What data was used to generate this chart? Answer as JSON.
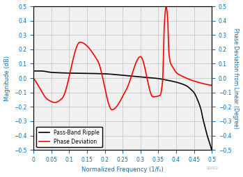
{
  "title": "",
  "xlabel": "Normalized Frequency (1/fₛ)",
  "ylabel_left": "Magnitude (dB)",
  "ylabel_right": "Phase Deviation from Linear (Degree)",
  "xlim": [
    0,
    0.5
  ],
  "ylim": [
    -0.5,
    0.5
  ],
  "xticks": [
    0,
    0.05,
    0.1,
    0.15,
    0.2,
    0.25,
    0.3,
    0.35,
    0.4,
    0.45,
    0.5
  ],
  "yticks": [
    -0.5,
    -0.4,
    -0.3,
    -0.2,
    -0.1,
    0,
    0.1,
    0.2,
    0.3,
    0.4,
    0.5
  ],
  "legend_labels": [
    "Pass-Band Ripple",
    "Phase Deviation"
  ],
  "legend_colors": [
    "black",
    "red"
  ],
  "grid_color": "#c0c0c0",
  "label_color": "#0070c0",
  "watermark": "LR002",
  "background_color": "#f0f0f0",
  "passband_x": [
    0.0,
    0.02,
    0.05,
    0.1,
    0.15,
    0.2,
    0.25,
    0.3,
    0.33,
    0.35,
    0.37,
    0.39,
    0.41,
    0.43,
    0.44,
    0.45,
    0.46,
    0.47,
    0.475,
    0.48,
    0.485,
    0.49,
    0.495,
    0.5
  ],
  "passband_y": [
    0.05,
    0.05,
    0.04,
    0.035,
    0.033,
    0.03,
    0.02,
    0.008,
    0.002,
    -0.003,
    -0.012,
    -0.022,
    -0.035,
    -0.055,
    -0.075,
    -0.1,
    -0.15,
    -0.22,
    -0.28,
    -0.33,
    -0.38,
    -0.42,
    -0.46,
    -0.5
  ],
  "phase_x": [
    0.0,
    0.01,
    0.04,
    0.06,
    0.08,
    0.13,
    0.18,
    0.22,
    0.26,
    0.3,
    0.335,
    0.355,
    0.362,
    0.367,
    0.372,
    0.376,
    0.38,
    0.385,
    0.39,
    0.4,
    0.42,
    0.45,
    0.5
  ],
  "phase_y": [
    0.0,
    -0.04,
    -0.15,
    -0.17,
    -0.14,
    0.25,
    0.12,
    -0.22,
    -0.08,
    0.15,
    -0.13,
    -0.12,
    -0.02,
    0.38,
    0.5,
    0.42,
    0.17,
    0.1,
    0.08,
    0.04,
    0.01,
    -0.02,
    -0.05
  ]
}
